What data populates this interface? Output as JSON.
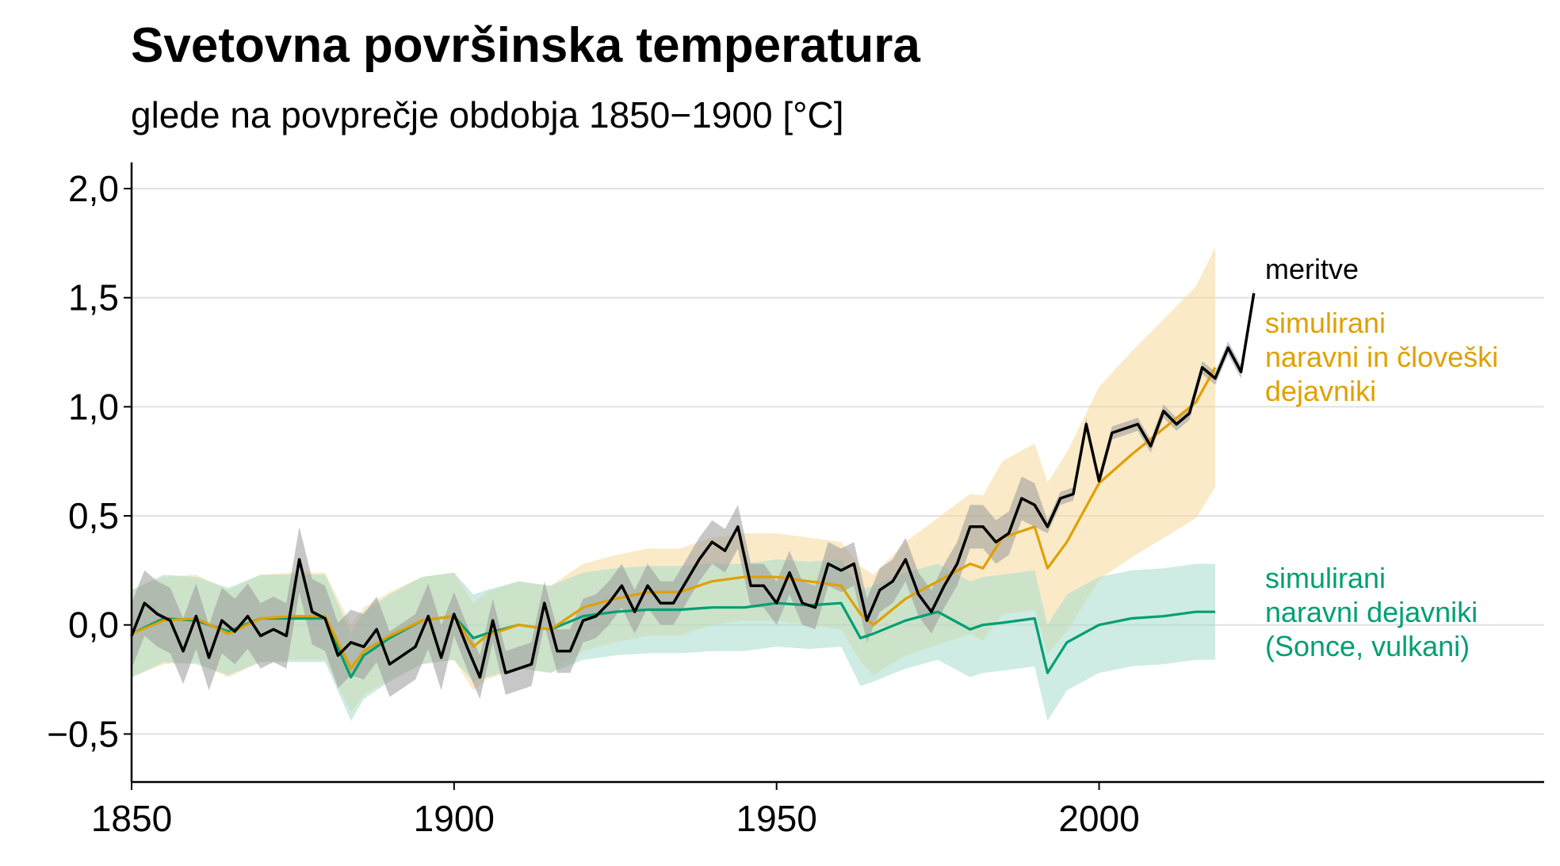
{
  "chart_data": {
    "type": "line",
    "title": "Svetovna površinska temperatura",
    "subtitle": "glede na povprečje obdobja 1850−1900 [°C]",
    "xlabel": "",
    "ylabel": "",
    "xlim": [
      1850,
      2069
    ],
    "ylim": [
      -0.72,
      2.12
    ],
    "x_ticks": [
      1850,
      1900,
      1950,
      2000
    ],
    "x_tick_labels": [
      "1850",
      "1900",
      "1950",
      "2000"
    ],
    "y_ticks": [
      -0.5,
      0.0,
      0.5,
      1.0,
      1.5,
      2.0
    ],
    "y_tick_labels": [
      "−0,5",
      "0,0",
      "0,5",
      "1,0",
      "1,5",
      "2,0"
    ],
    "grid": "horizontal",
    "series": [
      {
        "name": "meritve",
        "color": "#000000",
        "band_color": "#999999",
        "x": [
          1850,
          1852,
          1854,
          1856,
          1858,
          1860,
          1862,
          1864,
          1866,
          1868,
          1870,
          1872,
          1874,
          1876,
          1878,
          1880,
          1882,
          1884,
          1886,
          1888,
          1890,
          1892,
          1894,
          1896,
          1898,
          1900,
          1902,
          1904,
          1906,
          1908,
          1910,
          1912,
          1914,
          1916,
          1918,
          1920,
          1922,
          1924,
          1926,
          1928,
          1930,
          1932,
          1934,
          1936,
          1938,
          1940,
          1942,
          1944,
          1946,
          1948,
          1950,
          1952,
          1954,
          1956,
          1958,
          1960,
          1962,
          1964,
          1966,
          1968,
          1970,
          1972,
          1974,
          1976,
          1978,
          1980,
          1982,
          1984,
          1986,
          1988,
          1990,
          1992,
          1994,
          1996,
          1998,
          2000,
          2002,
          2004,
          2006,
          2008,
          2010,
          2012,
          2014,
          2016,
          2018,
          2020,
          2022,
          2024
        ],
        "values": [
          -0.05,
          0.1,
          0.05,
          0.02,
          -0.12,
          0.04,
          -0.15,
          0.02,
          -0.03,
          0.04,
          -0.05,
          -0.02,
          -0.05,
          0.3,
          0.06,
          0.03,
          -0.14,
          -0.08,
          -0.1,
          -0.02,
          -0.18,
          -0.14,
          -0.1,
          0.04,
          -0.15,
          0.05,
          -0.1,
          -0.24,
          0.02,
          -0.22,
          -0.2,
          -0.18,
          0.1,
          -0.12,
          -0.12,
          0.02,
          0.04,
          0.1,
          0.18,
          0.06,
          0.18,
          0.1,
          0.1,
          0.2,
          0.3,
          0.38,
          0.34,
          0.45,
          0.18,
          0.18,
          0.1,
          0.24,
          0.1,
          0.08,
          0.28,
          0.25,
          0.28,
          0.02,
          0.16,
          0.2,
          0.3,
          0.14,
          0.06,
          0.18,
          0.28,
          0.45,
          0.45,
          0.38,
          0.42,
          0.58,
          0.55,
          0.45,
          0.58,
          0.6,
          0.92,
          0.66,
          0.88,
          0.9,
          0.92,
          0.82,
          0.98,
          0.92,
          0.97,
          1.18,
          1.13,
          1.27,
          1.16,
          1.52
        ]
      },
      {
        "name": "simulirani naravni in človeški dejavniki",
        "color": "#e0a000",
        "band_color": "#f5d99a",
        "x": [
          1850,
          1855,
          1860,
          1865,
          1870,
          1875,
          1880,
          1884,
          1886,
          1890,
          1895,
          1900,
          1903,
          1905,
          1910,
          1915,
          1920,
          1925,
          1930,
          1935,
          1940,
          1945,
          1950,
          1955,
          1960,
          1963,
          1965,
          1970,
          1975,
          1980,
          1982,
          1985,
          1990,
          1992,
          1995,
          2000,
          2005,
          2010,
          2015,
          2018
        ],
        "values": [
          -0.04,
          0.02,
          0.03,
          -0.04,
          0.03,
          0.04,
          0.04,
          -0.2,
          -0.12,
          -0.05,
          0.02,
          0.04,
          -0.1,
          -0.05,
          0.0,
          -0.02,
          0.08,
          0.12,
          0.15,
          0.15,
          0.2,
          0.22,
          0.22,
          0.2,
          0.18,
          0.05,
          0.0,
          0.12,
          0.2,
          0.28,
          0.26,
          0.4,
          0.45,
          0.26,
          0.38,
          0.65,
          0.78,
          0.9,
          1.02,
          1.18
        ]
      },
      {
        "name": "simulirani naravni dejavniki (Sonce, vulkani)",
        "color": "#009e73",
        "band_color": "#a6dccc",
        "x": [
          1850,
          1855,
          1860,
          1865,
          1870,
          1875,
          1880,
          1884,
          1886,
          1890,
          1895,
          1900,
          1903,
          1905,
          1910,
          1915,
          1920,
          1925,
          1930,
          1935,
          1940,
          1945,
          1950,
          1955,
          1960,
          1963,
          1965,
          1970,
          1975,
          1980,
          1982,
          1985,
          1990,
          1992,
          1995,
          2000,
          2005,
          2010,
          2015,
          2018
        ],
        "values": [
          -0.04,
          0.03,
          0.02,
          -0.03,
          0.03,
          0.03,
          0.03,
          -0.24,
          -0.14,
          -0.06,
          0.02,
          0.04,
          -0.06,
          -0.04,
          0.0,
          -0.02,
          0.04,
          0.06,
          0.07,
          0.07,
          0.08,
          0.08,
          0.1,
          0.09,
          0.1,
          -0.06,
          -0.04,
          0.02,
          0.06,
          -0.02,
          0.0,
          0.01,
          0.03,
          -0.22,
          -0.08,
          0.0,
          0.03,
          0.04,
          0.06,
          0.06
        ]
      }
    ],
    "annotations": [
      {
        "text": "meritve",
        "series": "meritve"
      },
      {
        "text": "simulirani\nnaravni in človeški\ndejavniki",
        "series": "simulirani naravni in človeški dejavniki"
      },
      {
        "text": "simulirani\nnaravni dejavniki\n(Sonce, vulkani)",
        "series": "simulirani naravni dejavniki (Sonce, vulkani)"
      }
    ]
  },
  "labels": {
    "obs": "meritve",
    "full": [
      "simulirani",
      "naravni in človeški",
      "dejavniki"
    ],
    "nat": [
      "simulirani",
      "naravni dejavniki",
      "(Sonce, vulkani)"
    ]
  }
}
